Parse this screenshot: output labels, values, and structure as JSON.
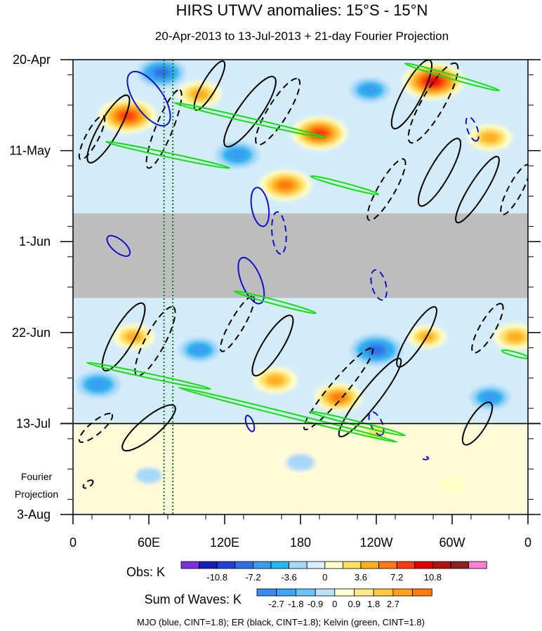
{
  "chart_data": {
    "type": "heatmap",
    "title": "HIRS UTWV anomalies: 15°S - 15°N",
    "subtitle": "20-Apr-2013 to 13-Jul-2013 + 21-day Fourier Projection",
    "x_tick_labels": [
      "0",
      "60E",
      "120E",
      "180",
      "120W",
      "60W",
      "0"
    ],
    "x_ticks_deg_east": [
      0,
      60,
      120,
      180,
      240,
      300,
      360
    ],
    "xlim_deg_east": [
      0,
      360
    ],
    "y_tick_labels": [
      "20-Apr",
      "11-May",
      "1-Jun",
      "22-Jun",
      "13-Jul",
      "3-Aug"
    ],
    "y_ticks_day": [
      0,
      21,
      42,
      63,
      84,
      105
    ],
    "ylim_day": [
      0,
      105
    ],
    "observation_end_day": 84,
    "missing_data_days": [
      35.5,
      55
    ],
    "projection_label": [
      "Fourier",
      "Projection"
    ],
    "reference_longitudes_deg_east": [
      72,
      79
    ],
    "obs_colorbar": {
      "label": "Obs: K",
      "tick_labels": [
        "-10.8",
        "-7.2",
        "-3.6",
        "0",
        "3.6",
        "7.2",
        "10.8"
      ],
      "colors": [
        "#7b2fe0",
        "#1a1ab8",
        "#1f3fd6",
        "#2f6fe8",
        "#3a9cf0",
        "#22b8f0",
        "#a8d8f8",
        "#d8f0fc",
        "#ffffc8",
        "#ffe060",
        "#ffb020",
        "#ff7a10",
        "#ff3a10",
        "#e00000",
        "#b01010",
        "#8a2020",
        "#ff80d0"
      ]
    },
    "waves_colorbar": {
      "label": "Sum of Waves: K",
      "tick_labels": [
        "-2.7",
        "-1.8",
        "-0.9",
        "0",
        "0.9",
        "1.8",
        "2.7"
      ],
      "colors": [
        "#3a8cf0",
        "#3aa6f5",
        "#6cc4fa",
        "#b8e2fb",
        "#ffffd0",
        "#ffe88a",
        "#ffc840",
        "#ffa020",
        "#ff7a10"
      ]
    },
    "caption": "MJO (blue, CINT=1.8); ER (black, CINT=1.8); Kelvin (green, CINT=1.8)",
    "series": [
      {
        "name": "MJO",
        "color": "#1010d0",
        "contour_interval": 1.8
      },
      {
        "name": "ER",
        "color": "#000000",
        "contour_interval": 1.8
      },
      {
        "name": "Kelvin",
        "color": "#10e010",
        "contour_interval": 1.8
      }
    ],
    "anomaly_features": [
      {
        "lon": 43,
        "day": 13,
        "value": 9.5
      },
      {
        "lon": 100,
        "day": 8,
        "value": 6.0
      },
      {
        "lon": 195,
        "day": 17,
        "value": 9.0
      },
      {
        "lon": 285,
        "day": 5,
        "value": 10.5
      },
      {
        "lon": 330,
        "day": 18,
        "value": 6.0
      },
      {
        "lon": 168,
        "day": 29,
        "value": 8.0
      },
      {
        "lon": 48,
        "day": 64,
        "value": 5.5
      },
      {
        "lon": 280,
        "day": 64,
        "value": 4.5
      },
      {
        "lon": 350,
        "day": 64,
        "value": 6.0
      },
      {
        "lon": 160,
        "day": 74,
        "value": 6.0
      },
      {
        "lon": 210,
        "day": 78,
        "value": 7.0
      },
      {
        "lon": 240,
        "day": 86,
        "value": 3.0
      },
      {
        "lon": 70,
        "day": 3,
        "value": -7.0
      },
      {
        "lon": 130,
        "day": 22,
        "value": -6.0
      },
      {
        "lon": 235,
        "day": 7,
        "value": -5.0
      },
      {
        "lon": 20,
        "day": 75,
        "value": -6.0
      },
      {
        "lon": 240,
        "day": 67,
        "value": -8.0
      },
      {
        "lon": 100,
        "day": 67,
        "value": -5.0
      },
      {
        "lon": 330,
        "day": 78,
        "value": -5.0
      },
      {
        "lon": 180,
        "day": 93,
        "value": -2.0
      },
      {
        "lon": 60,
        "day": 96,
        "value": -1.5
      },
      {
        "lon": 300,
        "day": 98,
        "value": 2.0
      }
    ],
    "wave_contours": [
      {
        "wave": "ER",
        "lon": 28,
        "day": 16,
        "rx": 55,
        "ry": 14,
        "angle": -60,
        "dashed": false
      },
      {
        "wave": "ER",
        "lon": 15,
        "day": 18,
        "rx": 35,
        "ry": 9,
        "angle": -62,
        "dashed": true
      },
      {
        "wave": "ER",
        "lon": 72,
        "day": 16,
        "rx": 60,
        "ry": 12,
        "angle": -68,
        "dashed": true
      },
      {
        "wave": "ER",
        "lon": 140,
        "day": 12,
        "rx": 60,
        "ry": 16,
        "angle": -55,
        "dashed": false
      },
      {
        "wave": "ER",
        "lon": 162,
        "day": 12,
        "rx": 55,
        "ry": 14,
        "angle": -58,
        "dashed": true
      },
      {
        "wave": "ER",
        "lon": 108,
        "day": 6,
        "rx": 40,
        "ry": 10,
        "angle": -60,
        "dashed": false
      },
      {
        "wave": "ER",
        "lon": 268,
        "day": 8,
        "rx": 55,
        "ry": 14,
        "angle": -62,
        "dashed": false
      },
      {
        "wave": "ER",
        "lon": 285,
        "day": 10,
        "rx": 65,
        "ry": 16,
        "angle": -60,
        "dashed": true
      },
      {
        "wave": "ER",
        "lon": 248,
        "day": 30,
        "rx": 50,
        "ry": 12,
        "angle": -60,
        "dashed": true
      },
      {
        "wave": "ER",
        "lon": 290,
        "day": 26,
        "rx": 55,
        "ry": 14,
        "angle": -60,
        "dashed": false
      },
      {
        "wave": "ER",
        "lon": 320,
        "day": 30,
        "rx": 55,
        "ry": 12,
        "angle": -58,
        "dashed": false
      },
      {
        "wave": "ER",
        "lon": 350,
        "day": 30,
        "rx": 40,
        "ry": 10,
        "angle": -62,
        "dashed": true
      },
      {
        "wave": "ER",
        "lon": 40,
        "day": 64,
        "rx": 55,
        "ry": 15,
        "angle": -60,
        "dashed": false
      },
      {
        "wave": "ER",
        "lon": 65,
        "day": 65,
        "rx": 55,
        "ry": 14,
        "angle": -62,
        "dashed": true
      },
      {
        "wave": "ER",
        "lon": 130,
        "day": 61,
        "rx": 45,
        "ry": 10,
        "angle": -60,
        "dashed": true
      },
      {
        "wave": "ER",
        "lon": 158,
        "day": 66,
        "rx": 50,
        "ry": 14,
        "angle": -58,
        "dashed": false
      },
      {
        "wave": "ER",
        "lon": 210,
        "day": 76,
        "rx": 75,
        "ry": 12,
        "angle": -50,
        "dashed": true
      },
      {
        "wave": "ER",
        "lon": 235,
        "day": 78,
        "rx": 70,
        "ry": 13,
        "angle": -52,
        "dashed": false
      },
      {
        "wave": "ER",
        "lon": 272,
        "day": 64,
        "rx": 50,
        "ry": 12,
        "angle": -58,
        "dashed": false
      },
      {
        "wave": "ER",
        "lon": 328,
        "day": 62,
        "rx": 40,
        "ry": 11,
        "angle": -60,
        "dashed": true
      },
      {
        "wave": "ER",
        "lon": 60,
        "day": 85,
        "rx": 48,
        "ry": 14,
        "angle": -40,
        "dashed": false
      },
      {
        "wave": "ER",
        "lon": 18,
        "day": 85,
        "rx": 30,
        "ry": 9,
        "angle": -40,
        "dashed": true
      },
      {
        "wave": "ER",
        "lon": 320,
        "day": 84,
        "rx": 35,
        "ry": 12,
        "angle": -58,
        "dashed": false
      },
      {
        "wave": "ER",
        "lon": 12,
        "day": 98,
        "rx": 8,
        "ry": 4,
        "angle": -35,
        "dashed": true
      },
      {
        "wave": "MJO",
        "lon": 60,
        "day": 9,
        "rx": 45,
        "ry": 20,
        "angle": 55,
        "dashed": false
      },
      {
        "wave": "MJO",
        "lon": 148,
        "day": 34,
        "rx": 28,
        "ry": 12,
        "angle": 80,
        "dashed": false
      },
      {
        "wave": "MJO",
        "lon": 163,
        "day": 40,
        "rx": 30,
        "ry": 10,
        "angle": 85,
        "dashed": true
      },
      {
        "wave": "MJO",
        "lon": 36,
        "day": 43,
        "rx": 20,
        "ry": 9,
        "angle": 40,
        "dashed": false
      },
      {
        "wave": "MJO",
        "lon": 141,
        "day": 51,
        "rx": 35,
        "ry": 14,
        "angle": 68,
        "dashed": false
      },
      {
        "wave": "MJO",
        "lon": 242,
        "day": 52,
        "rx": 22,
        "ry": 10,
        "angle": 75,
        "dashed": true
      },
      {
        "wave": "MJO",
        "lon": 316,
        "day": 16,
        "rx": 18,
        "ry": 7,
        "angle": 70,
        "dashed": true
      },
      {
        "wave": "MJO",
        "lon": 240,
        "day": 84,
        "rx": 18,
        "ry": 8,
        "angle": 65,
        "dashed": true
      },
      {
        "wave": "MJO",
        "lon": 140,
        "day": 84,
        "rx": 12,
        "ry": 5,
        "angle": 70,
        "dashed": false
      },
      {
        "wave": "MJO",
        "lon": 279,
        "day": 92,
        "rx": 4,
        "ry": 2,
        "angle": 0,
        "dashed": true
      },
      {
        "wave": "Kelvin",
        "lon": 140,
        "day": 14,
        "rx": 110,
        "ry": 3,
        "angle": 13,
        "dashed": false
      },
      {
        "wave": "Kelvin",
        "lon": 75,
        "day": 22,
        "rx": 90,
        "ry": 3,
        "angle": 12,
        "dashed": false
      },
      {
        "wave": "Kelvin",
        "lon": 300,
        "day": 4,
        "rx": 70,
        "ry": 3,
        "angle": 16,
        "dashed": false
      },
      {
        "wave": "Kelvin",
        "lon": 215,
        "day": 29,
        "rx": 50,
        "ry": 3,
        "angle": 15,
        "dashed": false
      },
      {
        "wave": "Kelvin",
        "lon": 160,
        "day": 56,
        "rx": 60,
        "ry": 3,
        "angle": 15,
        "dashed": false
      },
      {
        "wave": "Kelvin",
        "lon": 60,
        "day": 73,
        "rx": 90,
        "ry": 3,
        "angle": 12,
        "dashed": false
      },
      {
        "wave": "Kelvin",
        "lon": 170,
        "day": 82,
        "rx": 160,
        "ry": 3,
        "angle": 14,
        "dashed": false
      },
      {
        "wave": "Kelvin",
        "lon": 350,
        "day": 68,
        "rx": 20,
        "ry": 3,
        "angle": 15,
        "dashed": false
      },
      {
        "wave": "Kelvin",
        "lon": 225,
        "day": 84,
        "rx": 70,
        "ry": 3,
        "angle": 14,
        "dashed": false
      }
    ]
  }
}
